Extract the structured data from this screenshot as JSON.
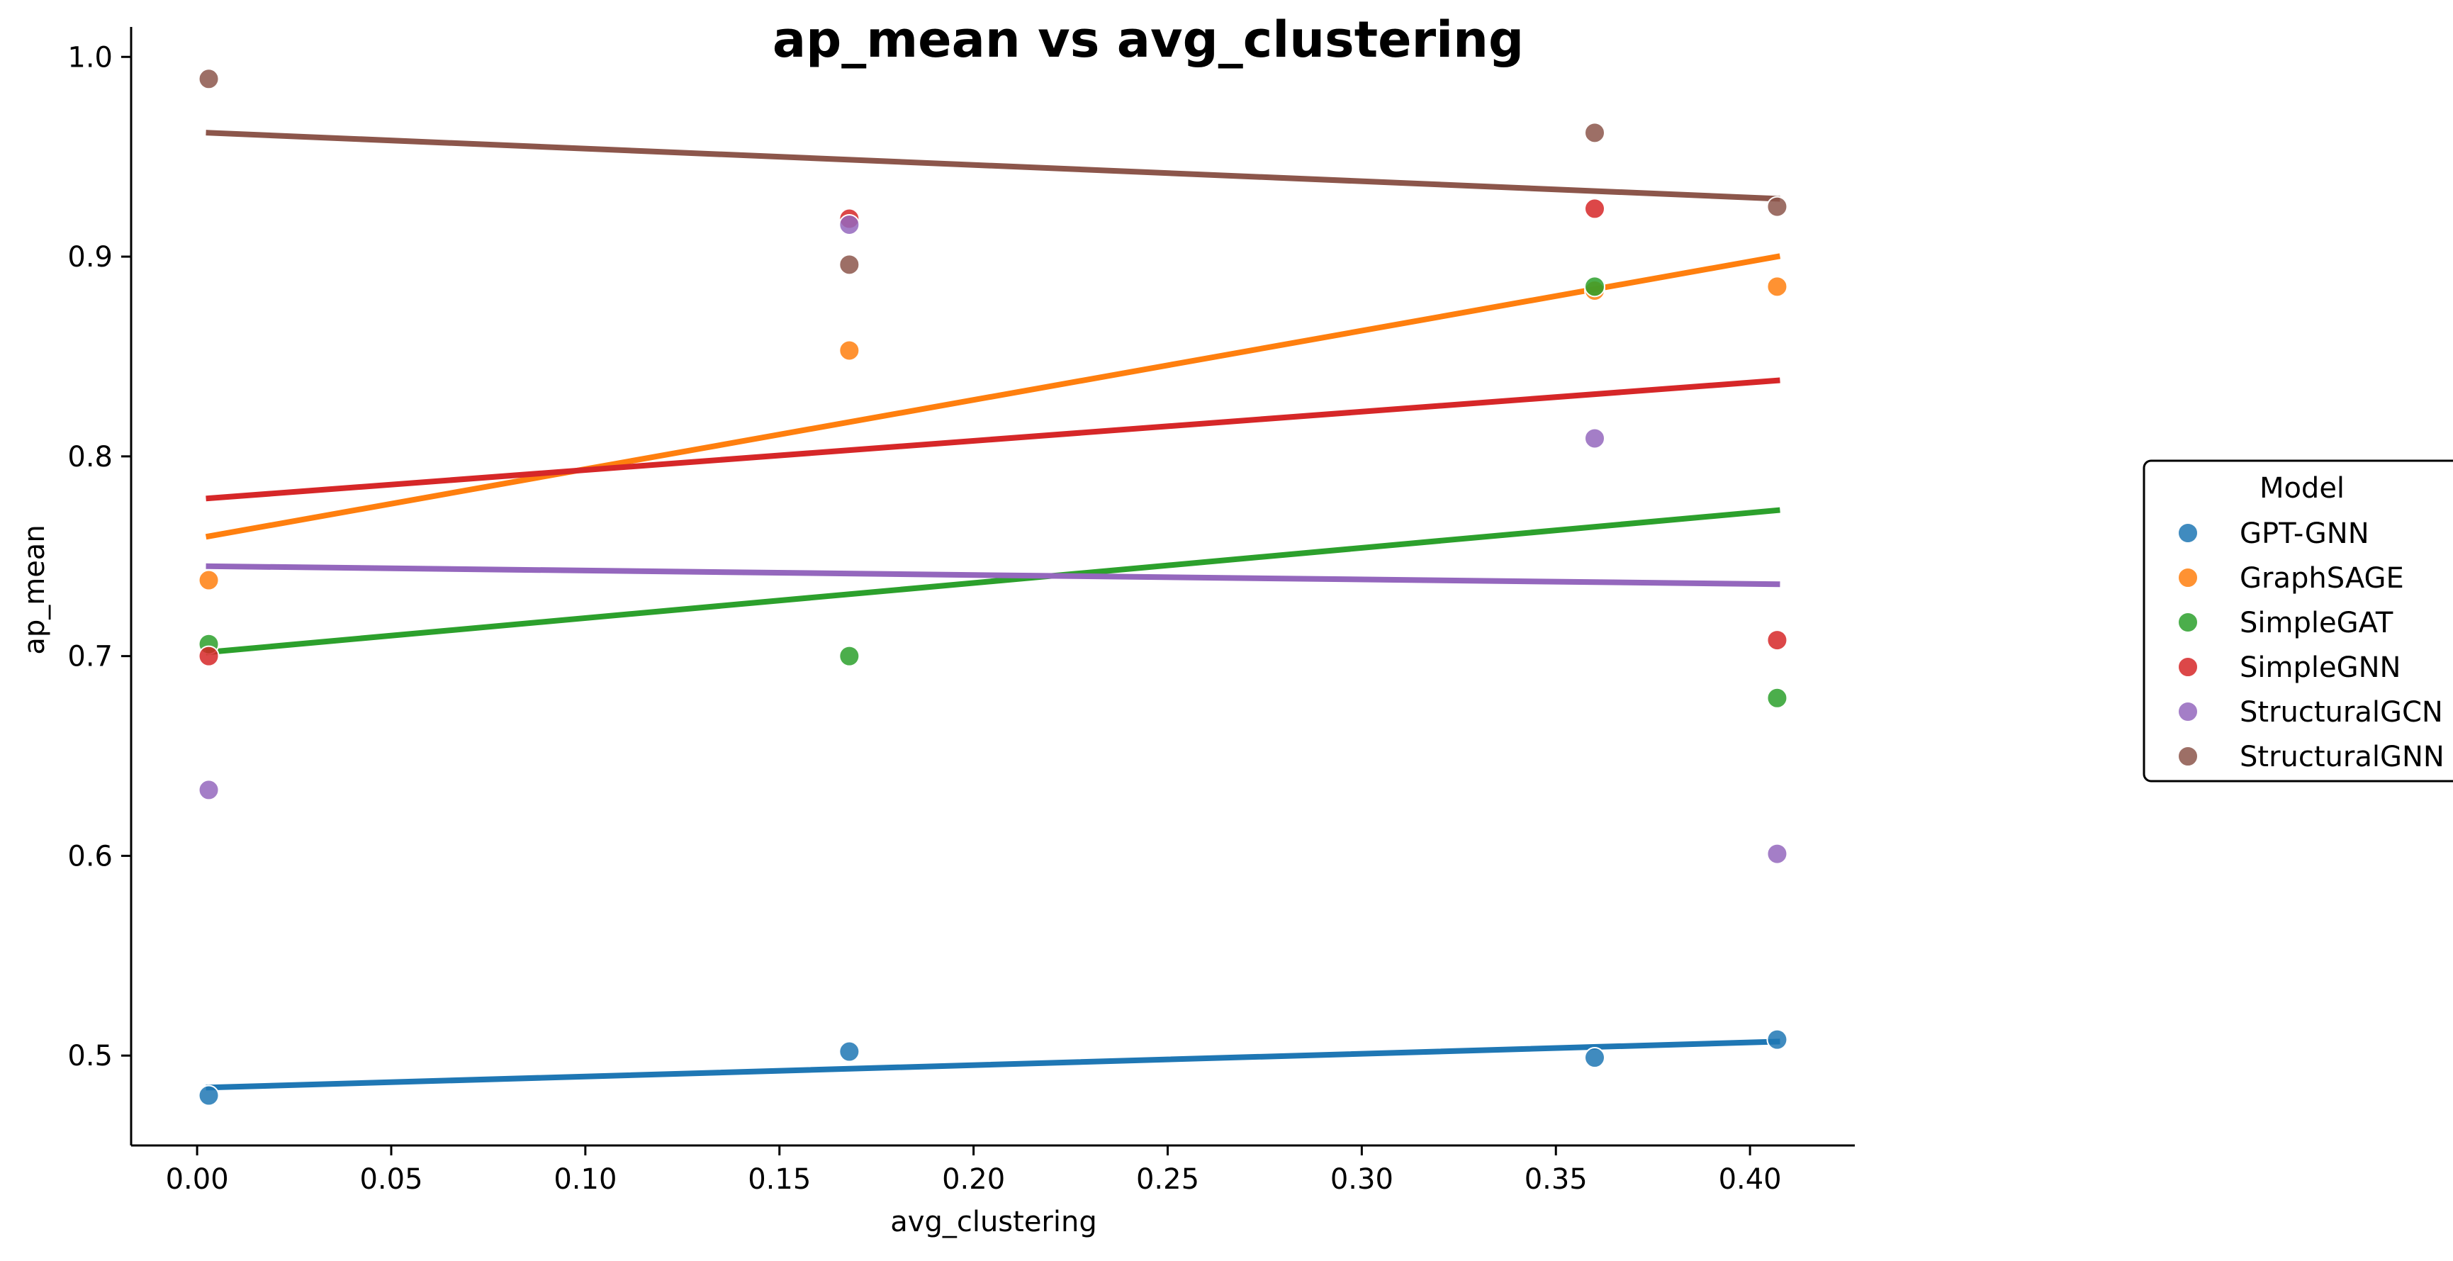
{
  "chart_data": {
    "type": "scatter",
    "title": "ap_mean vs avg_clustering",
    "xlabel": "avg_clustering",
    "ylabel": "ap_mean",
    "xlim": [
      -0.017,
      0.427
    ],
    "ylim": [
      0.455,
      1.015
    ],
    "xticks": [
      0.0,
      0.05,
      0.1,
      0.15,
      0.2,
      0.25,
      0.3,
      0.35,
      0.4
    ],
    "xtick_labels": [
      "0.00",
      "0.05",
      "0.10",
      "0.15",
      "0.20",
      "0.25",
      "0.30",
      "0.35",
      "0.40"
    ],
    "yticks": [
      0.5,
      0.6,
      0.7,
      0.8,
      0.9,
      1.0
    ],
    "ytick_labels": [
      "0.5",
      "0.6",
      "0.7",
      "0.8",
      "0.9",
      "1.0"
    ],
    "grid": false,
    "legend": {
      "title": "Model",
      "placement": "right"
    },
    "series": [
      {
        "name": "GPT-GNN",
        "color": "#1f77b4",
        "points": [
          [
            0.003,
            0.48
          ],
          [
            0.168,
            0.502
          ],
          [
            0.36,
            0.499
          ],
          [
            0.407,
            0.508
          ]
        ],
        "trend": [
          [
            0.003,
            0.484
          ],
          [
            0.407,
            0.507
          ]
        ]
      },
      {
        "name": "GraphSAGE",
        "color": "#ff7f0e",
        "points": [
          [
            0.003,
            0.738
          ],
          [
            0.168,
            0.853
          ],
          [
            0.36,
            0.883
          ],
          [
            0.407,
            0.885
          ]
        ],
        "trend": [
          [
            0.003,
            0.76
          ],
          [
            0.407,
            0.9
          ]
        ]
      },
      {
        "name": "SimpleGAT",
        "color": "#2ca02c",
        "points": [
          [
            0.003,
            0.706
          ],
          [
            0.168,
            0.7
          ],
          [
            0.36,
            0.885
          ],
          [
            0.407,
            0.679
          ]
        ],
        "trend": [
          [
            0.003,
            0.702
          ],
          [
            0.407,
            0.773
          ]
        ]
      },
      {
        "name": "SimpleGNN",
        "color": "#d62728",
        "points": [
          [
            0.003,
            0.7
          ],
          [
            0.168,
            0.919
          ],
          [
            0.36,
            0.924
          ],
          [
            0.407,
            0.708
          ]
        ],
        "trend": [
          [
            0.003,
            0.779
          ],
          [
            0.407,
            0.838
          ]
        ]
      },
      {
        "name": "StructuralGCN",
        "color": "#9467bd",
        "points": [
          [
            0.003,
            0.633
          ],
          [
            0.168,
            0.916
          ],
          [
            0.36,
            0.809
          ],
          [
            0.407,
            0.601
          ]
        ],
        "trend": [
          [
            0.003,
            0.745
          ],
          [
            0.407,
            0.736
          ]
        ]
      },
      {
        "name": "StructuralGNN",
        "color": "#8c564b",
        "points": [
          [
            0.003,
            0.989
          ],
          [
            0.168,
            0.896
          ],
          [
            0.36,
            0.962
          ],
          [
            0.407,
            0.925
          ]
        ],
        "trend": [
          [
            0.003,
            0.962
          ],
          [
            0.407,
            0.929
          ]
        ]
      }
    ]
  }
}
